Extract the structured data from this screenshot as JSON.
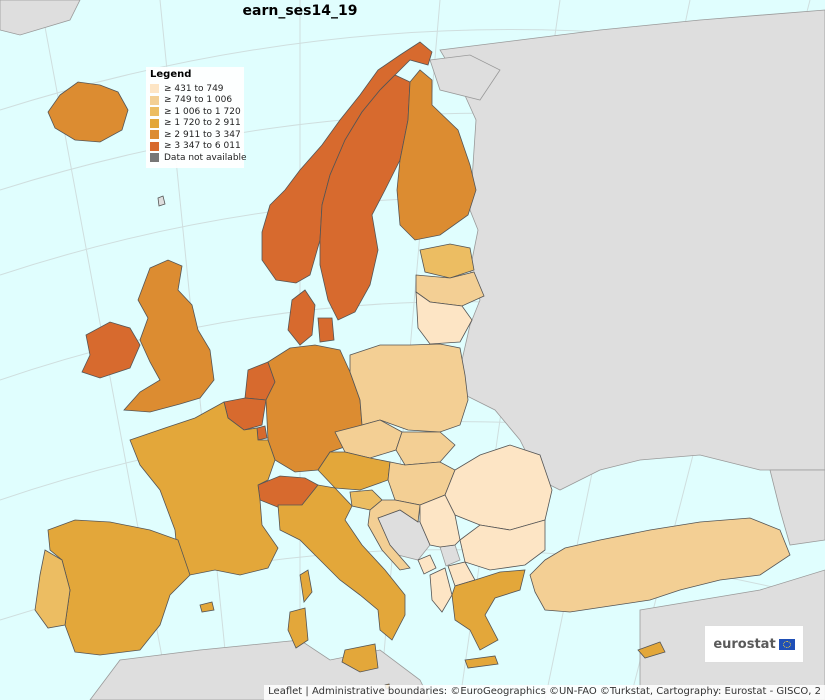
{
  "map": {
    "title": "earn_ses14_19",
    "colors": {
      "sea": "#e0fefe",
      "nonmember": "#dedede",
      "border": "#555555",
      "graticule": "#cfdede",
      "c1": "#fde5c5",
      "c2": "#f3cf94",
      "c3": "#ecbd62",
      "c4": "#e3a73a",
      "c5": "#dc8c31",
      "c6": "#d76a2e",
      "na": "#777777"
    }
  },
  "legend": {
    "title": "Legend",
    "items": [
      {
        "label": "≥ 431 to 749",
        "color": "#fde5c5"
      },
      {
        "label": "≥ 749 to 1 006",
        "color": "#f3cf94"
      },
      {
        "label": "≥ 1 006 to 1 720",
        "color": "#ecbd62"
      },
      {
        "label": "≥ 1 720 to 2 911",
        "color": "#e3a73a"
      },
      {
        "label": "≥ 2 911 to 3 347",
        "color": "#dc8c31"
      },
      {
        "label": "≥ 3 347 to 6 011",
        "color": "#d76a2e"
      },
      {
        "label": "Data not available",
        "color": "#777777"
      }
    ]
  },
  "logo": {
    "text": "eurostat"
  },
  "attribution": {
    "leaflet": "Leaflet",
    "separator": " | ",
    "text": "Administrative boundaries: ©EuroGeographics ©UN-FAO ©Turkstat, Cartography: Eurostat - GISCO, 2"
  }
}
